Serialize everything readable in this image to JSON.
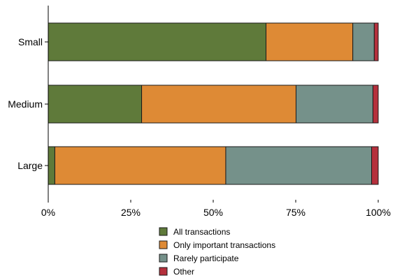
{
  "chart_data": {
    "type": "bar",
    "orientation": "horizontal",
    "stacked": true,
    "categories": [
      "Small",
      "Medium",
      "Large"
    ],
    "series": [
      {
        "name": "All transactions",
        "color": "#5f7a3a",
        "values": [
          66,
          28.3,
          2
        ]
      },
      {
        "name": "Only important transactions",
        "color": "#de8a35",
        "values": [
          26.3,
          46.8,
          51.8
        ]
      },
      {
        "name": "Rarely participate",
        "color": "#75918a",
        "values": [
          6.5,
          23.3,
          44.2
        ]
      },
      {
        "name": "Other",
        "color": "#b5303c",
        "values": [
          1.2,
          1.6,
          2
        ]
      }
    ],
    "xlim": [
      0,
      100
    ],
    "xticks": [
      "0%",
      "25%",
      "50%",
      "75%",
      "100%"
    ],
    "xtick_values": [
      0,
      25,
      50,
      75,
      100
    ],
    "title": "",
    "xlabel": "",
    "ylabel": "",
    "grid": false,
    "legend_position": "bottom"
  }
}
